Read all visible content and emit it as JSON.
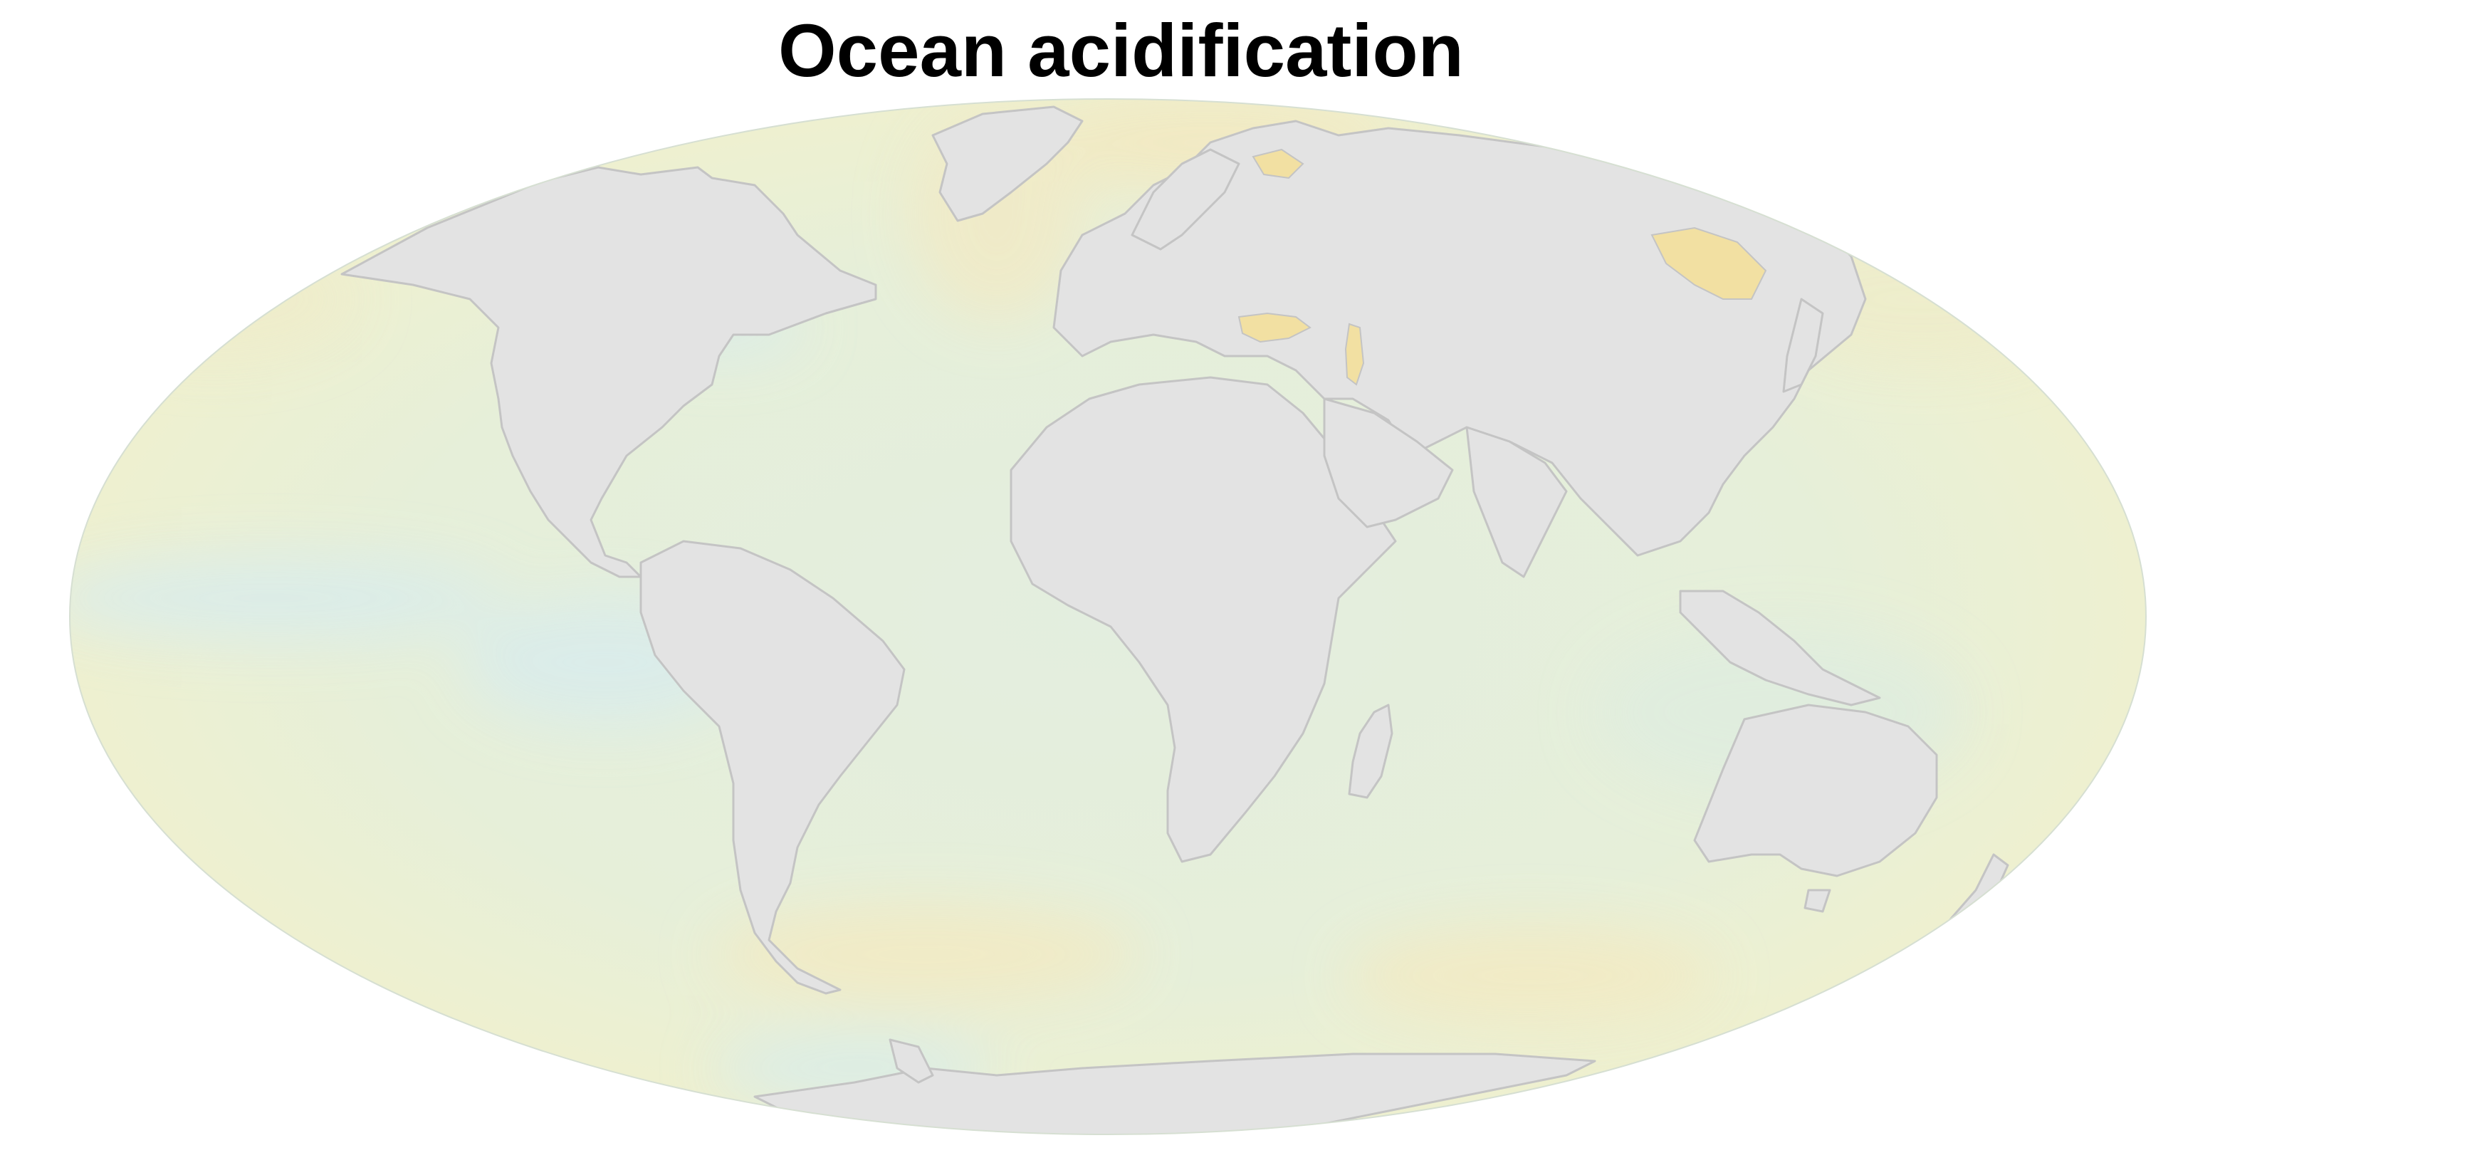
{
  "title": "Ocean acidification",
  "projection": "Mollweide",
  "colors": {
    "background": "#ffffff",
    "land": "#e3e3e3",
    "border": "#c4c4c4",
    "ocean_base": "#e2eedd",
    "ocean_cool": "#d7eceb",
    "ocean_warm": "#f1ebc7",
    "sea_highlight": "#f5dfa0",
    "title": "#000000"
  }
}
